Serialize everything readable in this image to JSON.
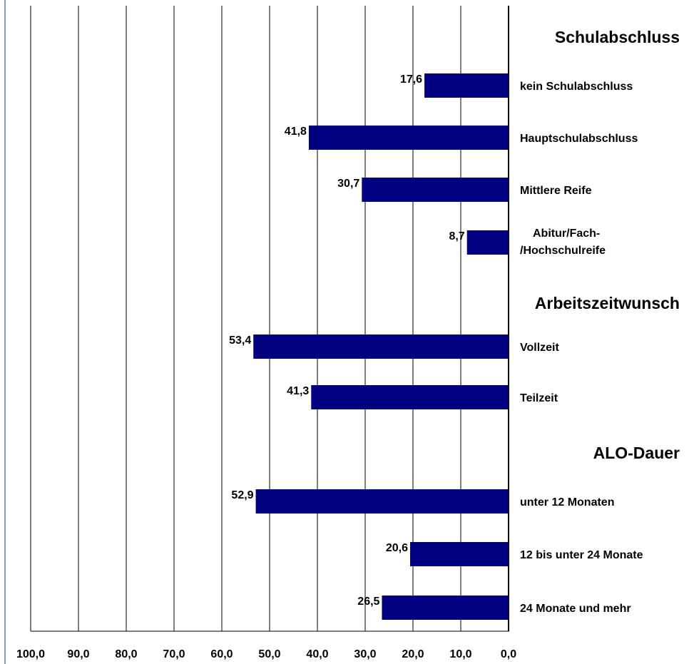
{
  "chart_data": {
    "type": "bar",
    "orientation": "horizontal",
    "x_direction": "reversed",
    "xlim": [
      0,
      100
    ],
    "x_tick_labels": [
      "100,0",
      "90,0",
      "80,0",
      "70,0",
      "60,0",
      "50,0",
      "40,0",
      "30,0",
      "20,0",
      "10,0",
      "0,0"
    ],
    "grid": "vertical",
    "bar_color": "#000080",
    "groups": [
      {
        "heading": "Schulabschluss",
        "items": [
          {
            "label": "kein Schulabschluss",
            "value": 17.6,
            "value_label": "17,6"
          },
          {
            "label": "Hauptschulabschluss",
            "value": 41.8,
            "value_label": "41,8"
          },
          {
            "label": "Mittlere Reife",
            "value": 30.7,
            "value_label": "30,7"
          },
          {
            "label": "Abitur/Fach-\n/Hochschulreife",
            "value": 8.7,
            "value_label": "8,7"
          }
        ]
      },
      {
        "heading": "Arbeitszeitwunsch",
        "items": [
          {
            "label": "Vollzeit",
            "value": 53.4,
            "value_label": "53,4"
          },
          {
            "label": "Teilzeit",
            "value": 41.3,
            "value_label": "41,3"
          }
        ]
      },
      {
        "heading": "ALO-Dauer",
        "items": [
          {
            "label": "unter 12 Monaten",
            "value": 52.9,
            "value_label": "52,9"
          },
          {
            "label": "12 bis unter 24 Monate",
            "value": 20.6,
            "value_label": "20,6"
          },
          {
            "label": "24 Monate und mehr",
            "value": 26.5,
            "value_label": "26,5"
          }
        ]
      }
    ]
  }
}
